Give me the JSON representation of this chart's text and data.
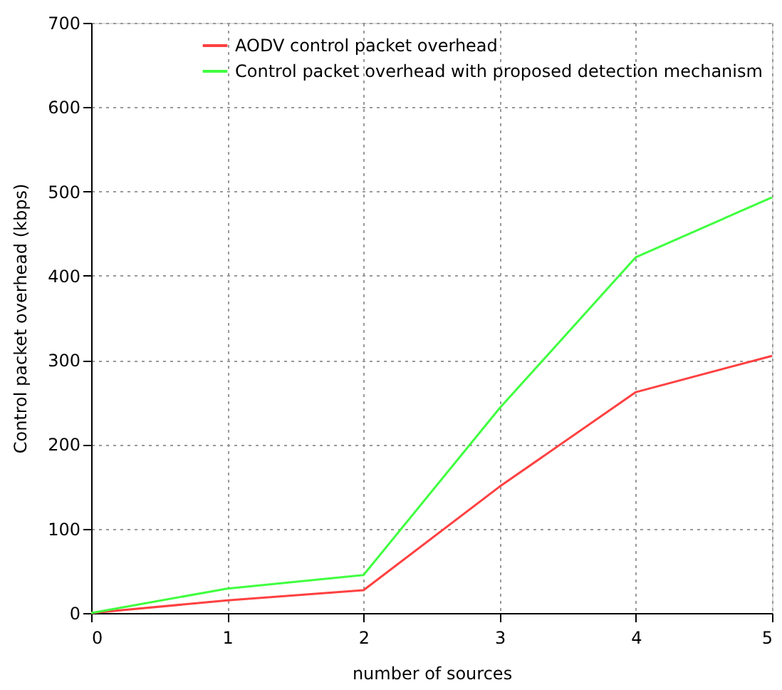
{
  "chart_data": {
    "type": "line",
    "xlabel": "number of sources",
    "ylabel": "Control packet overhead (kbps)",
    "x": [
      0,
      1,
      2,
      3,
      4,
      5
    ],
    "series": [
      {
        "name": "AODV control packet overhead",
        "color": "#ff4040",
        "values": [
          0,
          15,
          27,
          150,
          262,
          305
        ]
      },
      {
        "name": "Control packet overhead with proposed detection mechanism",
        "color": "#40ff40",
        "values": [
          0,
          29,
          45,
          243,
          422,
          493
        ]
      }
    ],
    "xlim": [
      0,
      5
    ],
    "xticks": [
      0,
      1,
      2,
      3,
      4,
      5
    ],
    "ylim": [
      0,
      700
    ],
    "yticks": [
      0,
      100,
      200,
      300,
      400,
      500,
      600,
      700
    ],
    "grid": true,
    "legend": "top right",
    "marker": "none",
    "line_style": "solid"
  }
}
